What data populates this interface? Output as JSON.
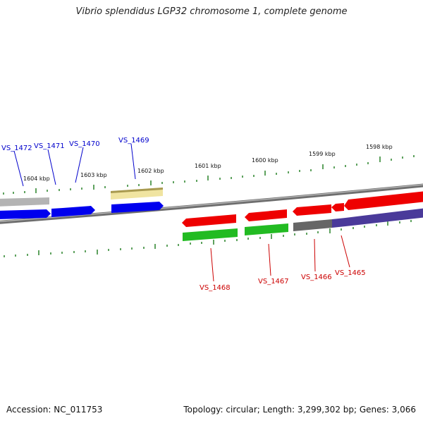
{
  "title": "Vibrio splendidus LGP32 chromosome 1, complete genome",
  "footer": {
    "accession": "Accession: NC_011753",
    "stats": "Topology: circular; Length: 3,299,302 bp; Genes: 3,066"
  },
  "colors": {
    "backbone": "#7a7a7a",
    "tick": "#1a7a1a",
    "forward_label": "#0000cc",
    "reverse_label": "#cc0000"
  },
  "scale_labels": [
    "1604 kbp",
    "1603 kbp",
    "1602 kbp",
    "1601 kbp",
    "1600 kbp",
    "1599 kbp",
    "1598 kbp"
  ],
  "gene_labels": {
    "forward": [
      "VS_1472",
      "VS_1471",
      "VS_1470",
      "VS_1469"
    ],
    "reverse": [
      "VS_1468",
      "VS_1467",
      "VS_1466",
      "VS_1465"
    ]
  },
  "feature_colors": {
    "cds_forward": "#0000ee",
    "cds_reverse": "#ee0000",
    "gene_grey": "#b4b4b4",
    "gene_yellow": "#f0e4a0",
    "gene_green": "#22bb22",
    "gene_dark_grey": "#666666",
    "gene_purple": "#4a3a9a"
  }
}
